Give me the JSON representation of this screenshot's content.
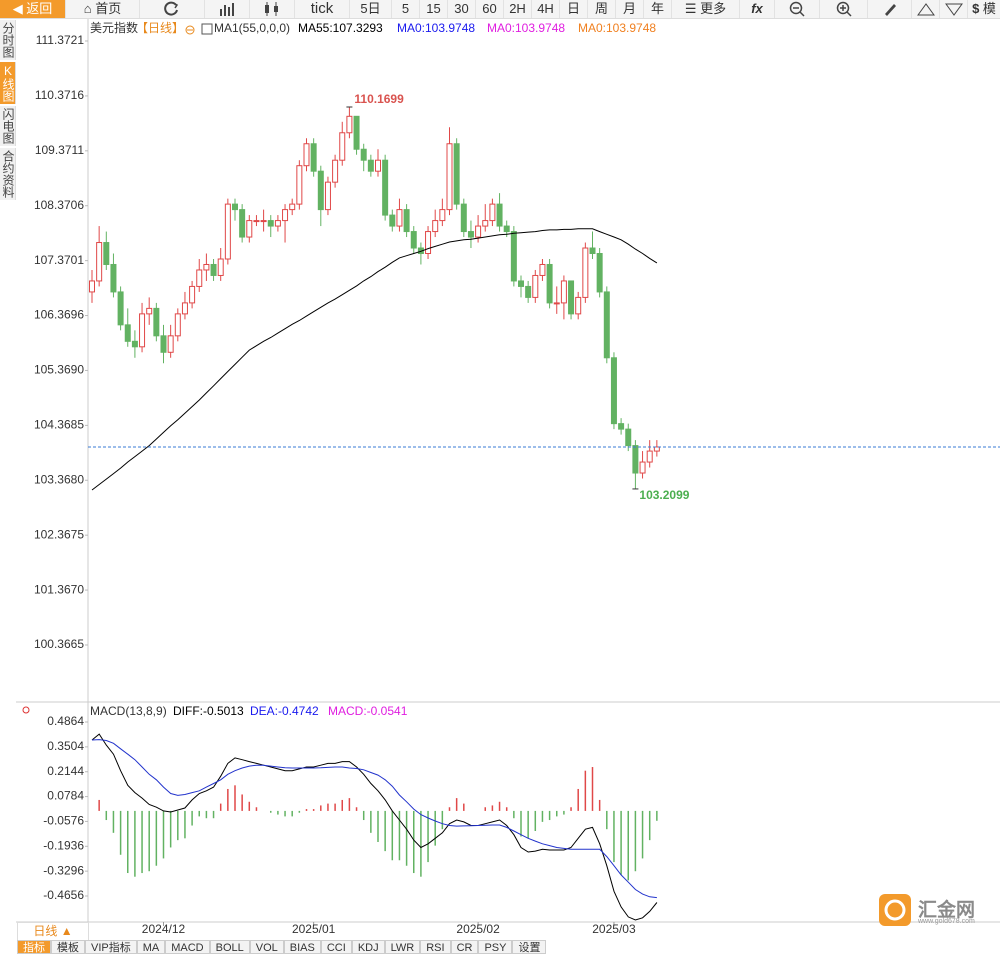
{
  "toolbar": {
    "back": "返回",
    "home": "首页",
    "periods": [
      "tick",
      "5日",
      "5",
      "15",
      "30",
      "60",
      "2H",
      "4H",
      "日",
      "周",
      "月",
      "年"
    ],
    "more": "更多",
    "fx": "fx",
    "currency": "$",
    "model": "模"
  },
  "side_tabs": [
    "分时图",
    "K线图",
    "闪电图",
    "合约资料"
  ],
  "chart_data": [
    {
      "type": "candlestick",
      "title": "美元指数",
      "period": "【日线】",
      "indicator": "MA1(55,0,0,0)",
      "legend": [
        {
          "text": "MA55:107.3293",
          "color": "#000000"
        },
        {
          "text": "MA0:103.9748",
          "color": "#1a1aee"
        },
        {
          "text": "MA0:103.9748",
          "color": "#e01ee0"
        },
        {
          "text": "MA0:103.9748",
          "color": "#f08020"
        }
      ],
      "up_color": "#e04848",
      "down_color": "#62b262",
      "high_label_color": "#d9534f",
      "low_label_color": "#4caf50",
      "last_price_color": "#3a7bd5",
      "ylim": [
        99.364,
        111.755
      ],
      "yticks": [
        111.3721,
        110.3716,
        109.3711,
        108.3706,
        107.3701,
        106.3696,
        {
          "value": 105.369,
          "label": "105.3690"
        },
        104.3685,
        {
          "value": 103.368,
          "label": "103.3680"
        },
        102.3675,
        {
          "value": 101.367,
          "label": "101.3670"
        },
        100.3665
      ],
      "ohlc": [
        [
          106.8,
          107.2,
          106.6,
          107.0
        ],
        [
          107.0,
          108.0,
          106.9,
          107.7
        ],
        [
          107.7,
          107.9,
          107.2,
          107.3
        ],
        [
          107.3,
          107.5,
          106.7,
          106.8
        ],
        [
          106.8,
          106.9,
          106.1,
          106.2
        ],
        [
          106.2,
          106.5,
          105.8,
          105.9
        ],
        [
          105.9,
          106.1,
          105.6,
          105.8
        ],
        [
          105.8,
          106.6,
          105.7,
          106.4
        ],
        [
          106.4,
          106.7,
          106.2,
          106.5
        ],
        [
          106.5,
          106.6,
          105.9,
          106.0
        ],
        [
          106.0,
          106.2,
          105.5,
          105.7
        ],
        [
          105.7,
          106.2,
          105.6,
          106.0
        ],
        [
          106.0,
          106.5,
          105.9,
          106.4
        ],
        [
          106.4,
          106.8,
          106.3,
          106.6
        ],
        [
          106.6,
          107.0,
          106.5,
          106.9
        ],
        [
          106.9,
          107.4,
          106.8,
          107.2
        ],
        [
          107.2,
          107.5,
          107.0,
          107.3
        ],
        [
          107.3,
          107.4,
          107.0,
          107.1
        ],
        [
          107.1,
          107.6,
          107.0,
          107.4
        ],
        [
          107.4,
          108.5,
          107.3,
          108.4
        ],
        [
          108.4,
          108.5,
          108.1,
          108.3
        ],
        [
          108.3,
          108.4,
          107.7,
          107.8
        ],
        [
          107.8,
          108.2,
          107.7,
          108.1
        ],
        [
          108.1,
          108.2,
          108.0,
          108.1
        ],
        [
          108.1,
          108.3,
          107.9,
          108.1
        ],
        [
          108.1,
          108.2,
          107.8,
          108.0
        ],
        [
          108.0,
          108.2,
          107.9,
          108.1
        ],
        [
          108.1,
          108.4,
          107.7,
          108.3
        ],
        [
          108.3,
          108.5,
          108.2,
          108.4
        ],
        [
          108.4,
          109.2,
          108.3,
          109.1
        ],
        [
          109.1,
          109.6,
          109.0,
          109.5
        ],
        [
          109.5,
          109.6,
          108.9,
          109.0
        ],
        [
          109.0,
          109.1,
          108.0,
          108.3
        ],
        [
          108.3,
          108.9,
          108.2,
          108.8
        ],
        [
          108.8,
          109.3,
          108.7,
          109.2
        ],
        [
          109.2,
          109.9,
          109.1,
          109.7
        ],
        [
          109.7,
          110.1699,
          109.6,
          110.0
        ],
        [
          110.0,
          110.0,
          109.3,
          109.4
        ],
        [
          109.4,
          109.5,
          109.0,
          109.2
        ],
        [
          109.2,
          109.3,
          108.9,
          109.0
        ],
        [
          109.0,
          109.4,
          108.9,
          109.2
        ],
        [
          109.2,
          109.3,
          108.1,
          108.2
        ],
        [
          108.2,
          108.3,
          107.9,
          108.0
        ],
        [
          108.0,
          108.5,
          107.9,
          108.3
        ],
        [
          108.3,
          108.4,
          107.8,
          107.9
        ],
        [
          107.9,
          108.0,
          107.5,
          107.6
        ],
        [
          107.6,
          107.7,
          107.3,
          107.5
        ],
        [
          107.5,
          108.0,
          107.4,
          107.9
        ],
        [
          107.9,
          108.3,
          107.8,
          108.1
        ],
        [
          108.1,
          108.5,
          108.0,
          108.3
        ],
        [
          108.3,
          109.8,
          108.2,
          109.5
        ],
        [
          109.5,
          109.6,
          108.3,
          108.4
        ],
        [
          108.4,
          108.5,
          107.8,
          107.9
        ],
        [
          107.9,
          108.1,
          107.6,
          107.8
        ],
        [
          107.8,
          108.2,
          107.7,
          108.0
        ],
        [
          108.0,
          108.4,
          107.9,
          108.1
        ],
        [
          108.1,
          108.5,
          108.0,
          108.4
        ],
        [
          108.4,
          108.6,
          107.9,
          108.0
        ],
        [
          108.0,
          108.1,
          107.8,
          107.9
        ],
        [
          107.9,
          108.0,
          106.9,
          107.0
        ],
        [
          107.0,
          107.1,
          106.7,
          106.9
        ],
        [
          106.9,
          107.0,
          106.6,
          106.7
        ],
        [
          106.7,
          107.2,
          106.6,
          107.1
        ],
        [
          107.1,
          107.4,
          107.0,
          107.3
        ],
        [
          107.3,
          107.4,
          106.5,
          106.6
        ],
        [
          106.6,
          106.9,
          106.4,
          106.6
        ],
        [
          106.6,
          107.1,
          106.3,
          107.0
        ],
        [
          107.0,
          107.0,
          106.3,
          106.4
        ],
        [
          106.4,
          106.8,
          106.3,
          106.7
        ],
        [
          106.7,
          107.7,
          106.6,
          107.6
        ],
        [
          107.6,
          107.9,
          107.4,
          107.5
        ],
        [
          107.5,
          107.6,
          106.7,
          106.8
        ],
        [
          106.8,
          106.9,
          105.5,
          105.6
        ],
        [
          105.6,
          105.7,
          104.3,
          104.4
        ],
        [
          104.4,
          104.5,
          104.2,
          104.3
        ],
        [
          104.3,
          104.4,
          103.9,
          104.0
        ],
        [
          104.0,
          104.1,
          103.2099,
          103.5
        ],
        [
          103.5,
          103.9,
          103.4,
          103.7
        ],
        [
          103.7,
          104.1,
          103.6,
          103.9
        ],
        [
          103.9,
          104.1,
          103.8,
          103.9748
        ]
      ],
      "ma": {
        "color": "#000000",
        "values": [
          103.19,
          103.29,
          103.39,
          103.49,
          103.59,
          103.7,
          103.8,
          103.9,
          104.0,
          104.12,
          104.24,
          104.36,
          104.47,
          104.59,
          104.71,
          104.83,
          104.96,
          105.09,
          105.22,
          105.35,
          105.48,
          105.61,
          105.74,
          105.82,
          105.9,
          105.97,
          106.05,
          106.13,
          106.21,
          106.28,
          106.36,
          106.44,
          106.52,
          106.6,
          106.67,
          106.75,
          106.83,
          106.91,
          107.0,
          107.08,
          107.17,
          107.25,
          107.34,
          107.42,
          107.46,
          107.5,
          107.54,
          107.59,
          107.63,
          107.67,
          107.71,
          107.73,
          107.75,
          107.76,
          107.78,
          107.8,
          107.82,
          107.84,
          107.85,
          107.87,
          107.88,
          107.89,
          107.9,
          107.92,
          107.93,
          107.93,
          107.94,
          107.94,
          107.95,
          107.95,
          107.95,
          107.9,
          107.85,
          107.8,
          107.75,
          107.67,
          107.58,
          107.5,
          107.41,
          107.3293
        ]
      }
    },
    {
      "type": "macd",
      "title": "MACD(13,8,9)",
      "legend": [
        {
          "text": "DIFF:-0.5013",
          "color": "#000000"
        },
        {
          "text": "DEA:-0.4742",
          "color": "#1a1aee"
        },
        {
          "text": "MACD:-0.0541",
          "color": "#e01ee0"
        }
      ],
      "ylim": [
        -0.6078,
        0.5794
      ],
      "yticks": [
        0.4864,
        0.3504,
        0.2144,
        0.0784,
        -0.0576,
        -0.1936,
        -0.3296,
        -0.4656
      ],
      "categories": [
        null,
        null,
        null,
        null,
        null,
        null,
        null,
        null,
        null,
        null,
        "2024/12",
        null,
        null,
        null,
        null,
        null,
        null,
        null,
        null,
        null,
        null,
        null,
        null,
        null,
        null,
        null,
        null,
        null,
        null,
        null,
        null,
        "2025/01",
        null,
        null,
        null,
        null,
        null,
        null,
        null,
        null,
        null,
        null,
        null,
        null,
        null,
        null,
        null,
        null,
        null,
        null,
        null,
        null,
        null,
        null,
        "2025/02",
        null,
        null,
        null,
        null,
        null,
        null,
        null,
        null,
        null,
        null,
        null,
        null,
        null,
        null,
        null,
        null,
        null,
        null,
        "2025/03",
        null,
        null,
        null,
        null,
        null,
        null
      ],
      "series": [
        {
          "color": "#000000",
          "values": [
            0.388,
            0.42,
            0.36,
            0.31,
            0.22,
            0.14,
            0.1,
            0.07,
            0.035,
            0.02,
            0.0,
            -0.006,
            0.005,
            0.016,
            0.06,
            0.095,
            0.11,
            0.13,
            0.19,
            0.26,
            0.29,
            0.28,
            0.27,
            0.26,
            0.25,
            0.24,
            0.23,
            0.22,
            0.22,
            0.23,
            0.24,
            0.24,
            0.25,
            0.26,
            0.26,
            0.27,
            0.27,
            0.24,
            0.2,
            0.15,
            0.11,
            0.06,
            0.0,
            -0.05,
            -0.1,
            -0.16,
            -0.2,
            -0.18,
            -0.15,
            -0.12,
            -0.07,
            -0.05,
            -0.06,
            -0.08,
            -0.08,
            -0.07,
            -0.06,
            -0.05,
            -0.08,
            -0.13,
            -0.2,
            -0.225,
            -0.22,
            -0.21,
            -0.214,
            -0.214,
            -0.214,
            -0.2,
            -0.15,
            -0.1,
            -0.09,
            -0.18,
            -0.3,
            -0.44,
            -0.525,
            -0.58,
            -0.597,
            -0.585,
            -0.55,
            -0.5013
          ]
        },
        {
          "color": "#2233cc",
          "values": [
            0.388,
            0.39,
            0.385,
            0.37,
            0.34,
            0.31,
            0.28,
            0.24,
            0.2,
            0.17,
            0.13,
            0.095,
            0.085,
            0.09,
            0.1,
            0.11,
            0.13,
            0.15,
            0.17,
            0.2,
            0.22,
            0.235,
            0.245,
            0.25,
            0.25,
            0.245,
            0.24,
            0.236,
            0.235,
            0.235,
            0.235,
            0.235,
            0.236,
            0.238,
            0.24,
            0.24,
            0.235,
            0.232,
            0.225,
            0.21,
            0.196,
            0.17,
            0.135,
            0.087,
            0.05,
            0.01,
            -0.02,
            -0.039,
            -0.055,
            -0.07,
            -0.08,
            -0.083,
            -0.082,
            -0.081,
            -0.08,
            -0.078,
            -0.077,
            -0.077,
            -0.09,
            -0.11,
            -0.13,
            -0.15,
            -0.165,
            -0.18,
            -0.19,
            -0.2,
            -0.205,
            -0.21,
            -0.21,
            -0.21,
            -0.21,
            -0.21,
            -0.25,
            -0.3,
            -0.35,
            -0.39,
            -0.43,
            -0.455,
            -0.47,
            -0.4742
          ]
        }
      ],
      "histogram": {
        "up_color": "#e04848",
        "down_color": "#62b262",
        "values": [
          0.0,
          0.06,
          -0.05,
          -0.12,
          -0.24,
          -0.34,
          -0.36,
          -0.34,
          -0.33,
          -0.3,
          -0.26,
          -0.2,
          -0.16,
          -0.15,
          -0.08,
          -0.03,
          -0.04,
          -0.04,
          0.04,
          0.12,
          0.14,
          0.09,
          0.05,
          0.02,
          0.0,
          -0.01,
          -0.02,
          -0.03,
          -0.03,
          -0.01,
          0.01,
          0.01,
          0.03,
          0.04,
          0.04,
          0.06,
          0.07,
          0.02,
          -0.05,
          -0.12,
          -0.17,
          -0.22,
          -0.27,
          -0.27,
          -0.3,
          -0.34,
          -0.36,
          -0.28,
          -0.19,
          -0.1,
          0.02,
          0.07,
          0.04,
          0.0,
          0.0,
          0.02,
          0.03,
          0.05,
          0.02,
          -0.04,
          -0.14,
          -0.15,
          -0.11,
          -0.06,
          -0.05,
          -0.03,
          -0.02,
          0.02,
          0.12,
          0.22,
          0.24,
          0.06,
          -0.1,
          -0.28,
          -0.35,
          -0.38,
          -0.33,
          -0.26,
          -0.16,
          -0.0541
        ]
      }
    }
  ],
  "bottom": {
    "period_label": "日线 ▲",
    "tabs": [
      "指标",
      "模板",
      "VIP指标",
      "MA",
      "MACD",
      "BOLL",
      "VOL",
      "BIAS",
      "CCI",
      "KDJ",
      "LWR",
      "RSI",
      "CR",
      "PSY",
      "设置"
    ]
  },
  "watermark": {
    "brand": "汇金网",
    "url": "www.gold678.com"
  }
}
